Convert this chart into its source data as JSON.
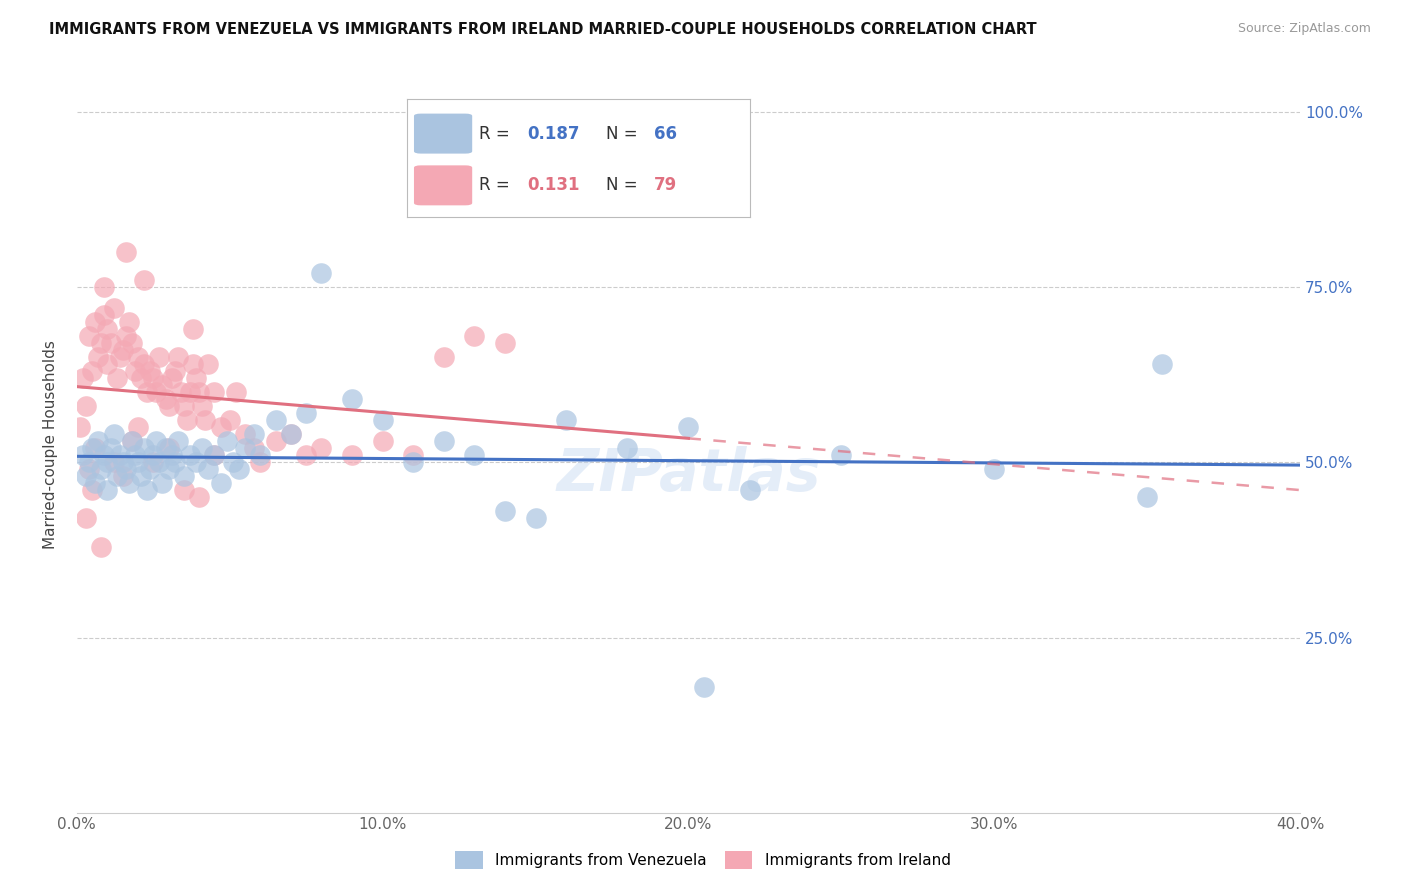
{
  "title": "IMMIGRANTS FROM VENEZUELA VS IMMIGRANTS FROM IRELAND MARRIED-COUPLE HOUSEHOLDS CORRELATION CHART",
  "source": "Source: ZipAtlas.com",
  "ylabel": "Married-couple Households",
  "x_tick_labels": [
    "0.0%",
    "10.0%",
    "20.0%",
    "30.0%",
    "40.0%"
  ],
  "x_tick_vals": [
    0,
    10,
    20,
    30,
    40
  ],
  "y_tick_labels_right": [
    "25.0%",
    "50.0%",
    "75.0%",
    "100.0%"
  ],
  "y_tick_vals": [
    25,
    50,
    75,
    100
  ],
  "xlim": [
    0,
    40
  ],
  "ylim": [
    0,
    105
  ],
  "r_venezuela": "0.187",
  "n_venezuela": "66",
  "r_ireland": "0.131",
  "n_ireland": "79",
  "legend_bottom_1": "Immigrants from Venezuela",
  "legend_bottom_2": "Immigrants from Ireland",
  "watermark": "ZIPatlas",
  "blue_scatter_color": "#aac4e0",
  "pink_scatter_color": "#f4a8b4",
  "blue_line_color": "#4472c4",
  "pink_line_color": "#e07080",
  "venezuela_x": [
    0.2,
    0.3,
    0.4,
    0.5,
    0.6,
    0.7,
    0.8,
    0.9,
    1.0,
    1.0,
    1.1,
    1.2,
    1.3,
    1.4,
    1.5,
    1.6,
    1.7,
    1.8,
    1.9,
    2.0,
    2.1,
    2.2,
    2.3,
    2.4,
    2.5,
    2.6,
    2.7,
    2.8,
    2.9,
    3.0,
    3.1,
    3.2,
    3.3,
    3.5,
    3.7,
    3.9,
    4.1,
    4.3,
    4.5,
    4.7,
    4.9,
    5.1,
    5.3,
    5.5,
    5.8,
    6.0,
    6.5,
    7.0,
    7.5,
    8.0,
    9.0,
    10.0,
    11.0,
    12.0,
    13.0,
    14.0,
    15.0,
    16.0,
    18.0,
    20.0,
    22.0,
    25.0,
    30.0,
    35.0,
    35.5,
    20.5
  ],
  "venezuela_y": [
    51,
    48,
    50,
    52,
    47,
    53,
    49,
    51,
    50,
    46,
    52,
    54,
    48,
    51,
    50,
    49,
    47,
    53,
    51,
    50,
    48,
    52,
    46,
    49,
    51,
    53,
    50,
    47,
    52,
    49,
    51,
    50,
    53,
    48,
    51,
    50,
    52,
    49,
    51,
    47,
    53,
    50,
    49,
    52,
    54,
    51,
    56,
    54,
    57,
    77,
    59,
    56,
    50,
    53,
    51,
    43,
    42,
    56,
    52,
    55,
    46,
    51,
    49,
    45,
    64,
    18
  ],
  "ireland_x": [
    0.1,
    0.2,
    0.3,
    0.4,
    0.5,
    0.6,
    0.7,
    0.8,
    0.9,
    1.0,
    1.0,
    1.1,
    1.2,
    1.3,
    1.4,
    1.5,
    1.6,
    1.7,
    1.8,
    1.9,
    2.0,
    2.1,
    2.2,
    2.3,
    2.4,
    2.5,
    2.6,
    2.7,
    2.8,
    2.9,
    3.0,
    3.1,
    3.2,
    3.3,
    3.4,
    3.5,
    3.6,
    3.7,
    3.8,
    3.9,
    4.0,
    4.1,
    4.2,
    4.3,
    4.5,
    4.7,
    5.0,
    5.2,
    5.5,
    5.8,
    6.0,
    6.5,
    7.0,
    7.5,
    8.0,
    9.0,
    10.0,
    11.0,
    12.0,
    13.0,
    14.0,
    2.5,
    3.0,
    0.5,
    1.5,
    0.3,
    0.8,
    1.2,
    0.6,
    0.4,
    2.0,
    1.8,
    3.5,
    4.0,
    0.9,
    2.2,
    1.6,
    3.8,
    4.5
  ],
  "ireland_y": [
    55,
    62,
    58,
    68,
    63,
    70,
    65,
    67,
    71,
    69,
    64,
    67,
    72,
    62,
    65,
    66,
    68,
    70,
    67,
    63,
    65,
    62,
    64,
    60,
    63,
    62,
    60,
    65,
    61,
    59,
    58,
    62,
    63,
    65,
    60,
    58,
    56,
    60,
    64,
    62,
    60,
    58,
    56,
    64,
    60,
    55,
    56,
    60,
    54,
    52,
    50,
    53,
    54,
    51,
    52,
    51,
    53,
    51,
    65,
    68,
    67,
    50,
    52,
    46,
    48,
    42,
    38,
    50,
    52,
    49,
    55,
    53,
    46,
    45,
    75,
    76,
    80,
    69,
    51
  ]
}
